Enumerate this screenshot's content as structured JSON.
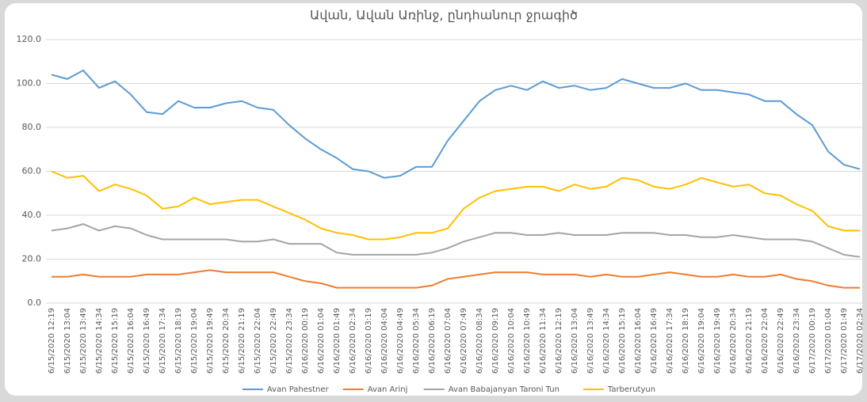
{
  "chart_data": {
    "type": "line",
    "title": "Ավան, Ավան Առինջ, ընդհանուր ջրագիծ",
    "categories": [
      "6/15/2020 12:19",
      "6/15/2020 13:04",
      "6/15/2020 13:49",
      "6/15/2020 14:34",
      "6/15/2020 15:19",
      "6/15/2020 16:04",
      "6/15/2020 16:49",
      "6/15/2020 17:34",
      "6/15/2020 18:19",
      "6/15/2020 19:04",
      "6/15/2020 19:49",
      "6/15/2020 20:34",
      "6/15/2020 21:19",
      "6/15/2020 22:04",
      "6/15/2020 22:49",
      "6/15/2020 23:34",
      "6/16/2020 00:19",
      "6/16/2020 01:04",
      "6/16/2020 01:49",
      "6/16/2020 02:34",
      "6/16/2020 03:19",
      "6/16/2020 04:04",
      "6/16/2020 04:49",
      "6/16/2020 05:34",
      "6/16/2020 06:19",
      "6/16/2020 07:04",
      "6/16/2020 07:49",
      "6/16/2020 08:34",
      "6/16/2020 09:19",
      "6/16/2020 10:04",
      "6/16/2020 10:49",
      "6/16/2020 11:34",
      "6/16/2020 12:19",
      "6/16/2020 13:04",
      "6/16/2020 13:49",
      "6/16/2020 14:34",
      "6/16/2020 15:19",
      "6/16/2020 16:04",
      "6/16/2020 16:49",
      "6/16/2020 17:34",
      "6/16/2020 18:19",
      "6/16/2020 19:04",
      "6/16/2020 19:49",
      "6/16/2020 20:34",
      "6/16/2020 21:19",
      "6/16/2020 22:04",
      "6/16/2020 22:49",
      "6/16/2020 23:34",
      "6/17/2020 00:19",
      "6/17/2020 01:04",
      "6/17/2020 01:49",
      "6/17/2020 02:34"
    ],
    "series": [
      {
        "name": "Avan Pahestner",
        "color": "#5b9bd5",
        "values": [
          104,
          102,
          106,
          98,
          101,
          95,
          87,
          86,
          92,
          89,
          89,
          91,
          92,
          89,
          88,
          81,
          75,
          70,
          66,
          61,
          60,
          57,
          58,
          62,
          62,
          74,
          83,
          92,
          97,
          99,
          97,
          101,
          98,
          99,
          97,
          98,
          102,
          100,
          98,
          98,
          100,
          97,
          97,
          96,
          95,
          92,
          92,
          86,
          81,
          69,
          63,
          61
        ]
      },
      {
        "name": "Avan Arinj",
        "color": "#ed7d31",
        "values": [
          12,
          12,
          13,
          12,
          12,
          12,
          13,
          13,
          13,
          14,
          15,
          14,
          14,
          14,
          14,
          12,
          10,
          9,
          7,
          7,
          7,
          7,
          7,
          7,
          8,
          11,
          12,
          13,
          14,
          14,
          14,
          13,
          13,
          13,
          12,
          13,
          12,
          12,
          13,
          14,
          13,
          12,
          12,
          13,
          12,
          12,
          13,
          11,
          10,
          8,
          7,
          7
        ]
      },
      {
        "name": "Avan Babajanyan Taroni Tun",
        "color": "#a5a5a5",
        "values": [
          33,
          34,
          36,
          33,
          35,
          34,
          31,
          29,
          29,
          29,
          29,
          29,
          28,
          28,
          29,
          27,
          27,
          27,
          23,
          22,
          22,
          22,
          22,
          22,
          23,
          25,
          28,
          30,
          32,
          32,
          31,
          31,
          32,
          31,
          31,
          31,
          32,
          32,
          32,
          31,
          31,
          30,
          30,
          31,
          30,
          29,
          29,
          29,
          28,
          25,
          22,
          21
        ]
      },
      {
        "name": "Tarberutyun",
        "color": "#ffc000",
        "values": [
          60,
          57,
          58,
          51,
          54,
          52,
          49,
          43,
          44,
          48,
          45,
          46,
          47,
          47,
          44,
          41,
          38,
          34,
          32,
          31,
          29,
          29,
          30,
          32,
          32,
          34,
          43,
          48,
          51,
          52,
          53,
          53,
          51,
          54,
          52,
          53,
          57,
          56,
          53,
          52,
          54,
          57,
          55,
          53,
          54,
          50,
          49,
          45,
          42,
          35,
          33,
          33
        ]
      }
    ],
    "ylim": [
      0,
      120
    ],
    "yticks": [
      {
        "value": 0,
        "label": "0.0"
      },
      {
        "value": 20,
        "label": "20.0"
      },
      {
        "value": 40,
        "label": "40.0"
      },
      {
        "value": 60,
        "label": "60.0"
      },
      {
        "value": 80,
        "label": "80.0"
      },
      {
        "value": 100,
        "label": "100.0"
      },
      {
        "value": 120,
        "label": "120.0"
      }
    ],
    "grid": true,
    "legend": "bottom"
  }
}
